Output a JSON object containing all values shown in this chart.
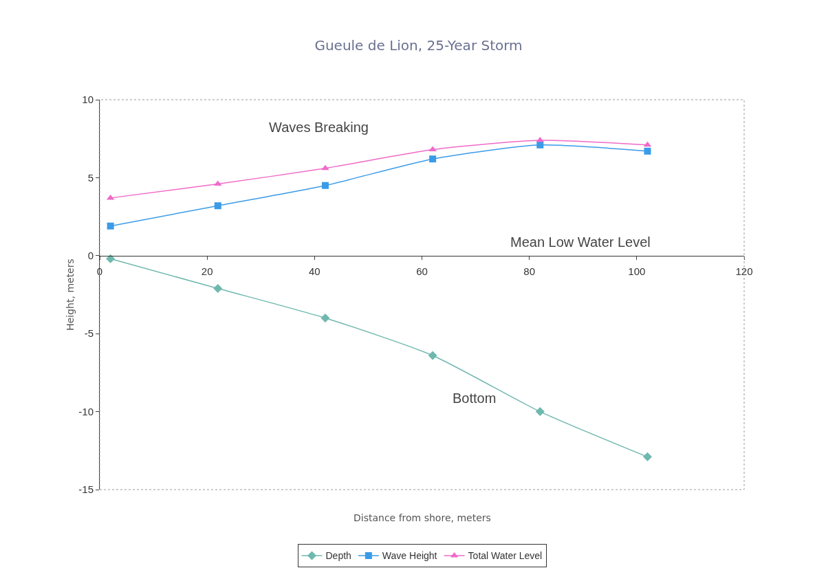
{
  "chart_data": {
    "type": "line",
    "title": "Gueule de Lion, 25-Year Storm",
    "xlabel": "Distance from shore, meters",
    "ylabel": "Height, meters",
    "x": [
      2,
      22,
      42,
      62,
      82,
      102
    ],
    "series": [
      {
        "name": "Depth",
        "color": "#6fb8ae",
        "marker": "diamond",
        "values": [
          -0.2,
          -2.1,
          -4.0,
          -6.4,
          -10.0,
          -12.9
        ]
      },
      {
        "name": "Wave Height",
        "color": "#3a9be8",
        "marker": "square",
        "values": [
          1.9,
          3.2,
          4.5,
          6.2,
          7.1,
          6.7
        ]
      },
      {
        "name": "Total Water Level",
        "color": "#f06ac8",
        "marker": "triangle",
        "values": [
          3.7,
          4.6,
          5.6,
          6.8,
          7.4,
          7.1
        ]
      }
    ],
    "xlim": [
      0,
      120
    ],
    "xticks": [
      0,
      20,
      40,
      60,
      80,
      100,
      120
    ],
    "ylim": [
      -15,
      10
    ],
    "yticks": [
      -15,
      -10,
      -5,
      0,
      5,
      10
    ],
    "grid": false,
    "legend": "bottom",
    "annotations": [
      "Waves Breaking",
      "Mean Low Water Level",
      "Bottom"
    ]
  }
}
